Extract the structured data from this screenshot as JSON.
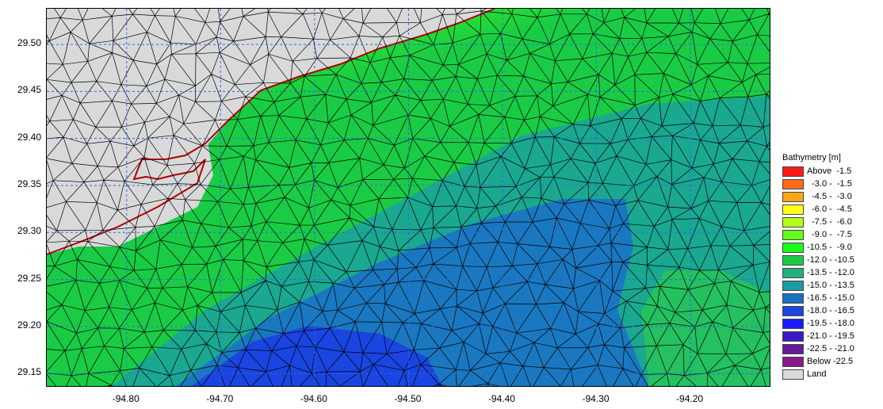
{
  "map": {
    "y_ticks": [
      "29.50",
      "29.45",
      "29.40",
      "29.35",
      "29.30",
      "29.25",
      "29.20",
      "29.15"
    ],
    "x_ticks": [
      "-94.80",
      "-94.70",
      "-94.60",
      "-94.50",
      "-94.40",
      "-94.30",
      "-94.20"
    ],
    "x_range": [
      -94.885,
      -94.114
    ],
    "y_range": [
      29.135,
      29.538
    ],
    "grid": "dashed blue",
    "land_color": "#d9d9d9",
    "mesh_color": "#000000"
  },
  "legend": {
    "title": "Bathymetry [m]",
    "items": [
      {
        "label": "Above  -1.5",
        "color": "#ff1a1a"
      },
      {
        "label": "  -3.0 -  -1.5",
        "color": "#ff6a1a"
      },
      {
        "label": "  -4.5 -  -3.0",
        "color": "#ffa51a"
      },
      {
        "label": "  -6.0 -  -4.5",
        "color": "#ffff1a"
      },
      {
        "label": "  -7.5 -  -6.0",
        "color": "#b5ff1a"
      },
      {
        "label": "  -9.0 -  -7.5",
        "color": "#66ff1a"
      },
      {
        "label": "-10.5 -  -9.0",
        "color": "#1aff1a"
      },
      {
        "label": "-12.0 - -10.5",
        "color": "#1acc45"
      },
      {
        "label": "-13.5 - -12.0",
        "color": "#20b080"
      },
      {
        "label": "-15.0 - -13.5",
        "color": "#1a9aa5"
      },
      {
        "label": "-16.5 - -15.0",
        "color": "#1a70c0"
      },
      {
        "label": "-18.0 - -16.5",
        "color": "#1a45e0"
      },
      {
        "label": "-19.5 - -18.0",
        "color": "#1a1aff"
      },
      {
        "label": "-21.0 - -19.5",
        "color": "#3a1ac8"
      },
      {
        "label": "-22.5 - -21.0",
        "color": "#651a9a"
      },
      {
        "label": "Below -22.5",
        "color": "#8a1a8a"
      },
      {
        "label": "Land",
        "color": "#d9d9d9"
      }
    ]
  }
}
